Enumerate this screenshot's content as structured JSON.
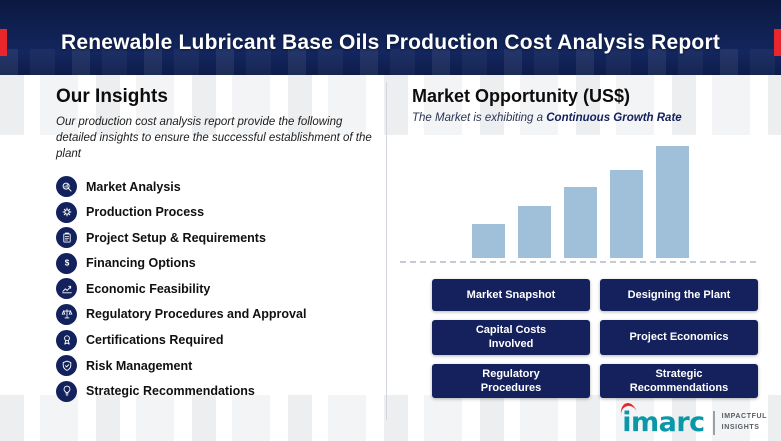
{
  "header": {
    "title": "Renewable Lubricant Base Oils Production Cost Analysis Report"
  },
  "insights": {
    "heading": "Our Insights",
    "description": "Our production cost analysis report provide the following detailed insights to ensure the successful establishment of the plant",
    "items": [
      {
        "icon": "market-analysis-icon",
        "label": "Market Analysis"
      },
      {
        "icon": "production-process-icon",
        "label": "Production Process"
      },
      {
        "icon": "project-setup-icon",
        "label": "Project Setup & Requirements"
      },
      {
        "icon": "financing-options-icon",
        "label": "Financing Options"
      },
      {
        "icon": "economic-feasibility-icon",
        "label": "Economic Feasibility"
      },
      {
        "icon": "regulatory-approval-icon",
        "label": "Regulatory Procedures and Approval"
      },
      {
        "icon": "certifications-icon",
        "label": "Certifications Required"
      },
      {
        "icon": "risk-management-icon",
        "label": "Risk Management"
      },
      {
        "icon": "strategic-recommendations-icon",
        "label": "Strategic Recommendations"
      }
    ]
  },
  "market": {
    "heading": "Market Opportunity (US$)",
    "subtitle_prefix": "The Market is exhibiting a ",
    "subtitle_highlight": "Continuous Growth Rate"
  },
  "chart_data": {
    "type": "bar",
    "categories": [
      "",
      "",
      "",
      "",
      ""
    ],
    "values": [
      30,
      46,
      63,
      79,
      100
    ],
    "title": "Market Opportunity (US$)",
    "xlabel": "",
    "ylabel": "",
    "ylim": [
      0,
      100
    ],
    "grid": false,
    "legend": false,
    "bar_color": "#9fc0d8",
    "baseline_style": "dashed"
  },
  "buttons": [
    "Market Snapshot",
    "Designing the Plant",
    "Capital Costs Involved",
    "Project Economics",
    "Regulatory Procedures",
    "Strategic Recommendations"
  ],
  "logo": {
    "name": "imarc",
    "tagline_line1": "IMPACTFUL",
    "tagline_line2": "INSIGHTS"
  },
  "colors": {
    "navy": "#13215c",
    "red": "#e8262c",
    "bar": "#9fc0d8",
    "button": "#14215c",
    "teal": "#0a97a8"
  }
}
